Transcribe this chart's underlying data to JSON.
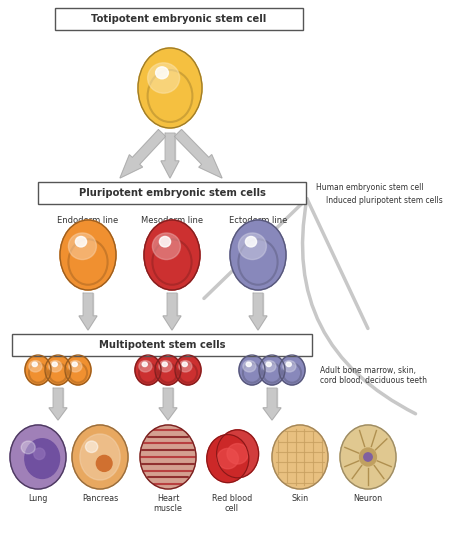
{
  "bg_color": "#ffffff",
  "title_box1": "Totipotent embryonic stem cell",
  "title_box2": "Pluripotent embryonic stem cells",
  "title_box3": "Multipotent stem cells",
  "label_endoderm": "Endoderm line",
  "label_mesoderm": "Mesoderm line",
  "label_ectoderm": "Ectoderm line",
  "label_lung": "Lung",
  "label_pancreas": "Pancreas",
  "label_heart": "Heart\nmuscle",
  "label_rbc": "Red blood\ncell",
  "label_skin": "Skin",
  "label_neuron": "Neuron",
  "side_text1": "Human embryonic stem cell",
  "side_text2": "Induced pluripotent stem cells",
  "side_text3": "Adult bone marrow, skin,\ncord blood, deciduous teeth",
  "arrow_color": "#c8c8c8",
  "box_edge_color": "#555555",
  "text_color": "#333333",
  "cell_totipotent": "#f5c040",
  "cell_endoderm": "#f09030",
  "cell_mesoderm": "#cc3030",
  "cell_ectoderm": "#8888bb",
  "multi_orange": "#f09030",
  "multi_red": "#cc3030",
  "multi_blue": "#8888bb",
  "lung_color": "#8060a0",
  "pancreas_color": "#e8a860",
  "heart_color": "#c05050",
  "rbc_color": "#cc2020",
  "skin_color": "#e8c080",
  "neuron_color": "#e0c890"
}
